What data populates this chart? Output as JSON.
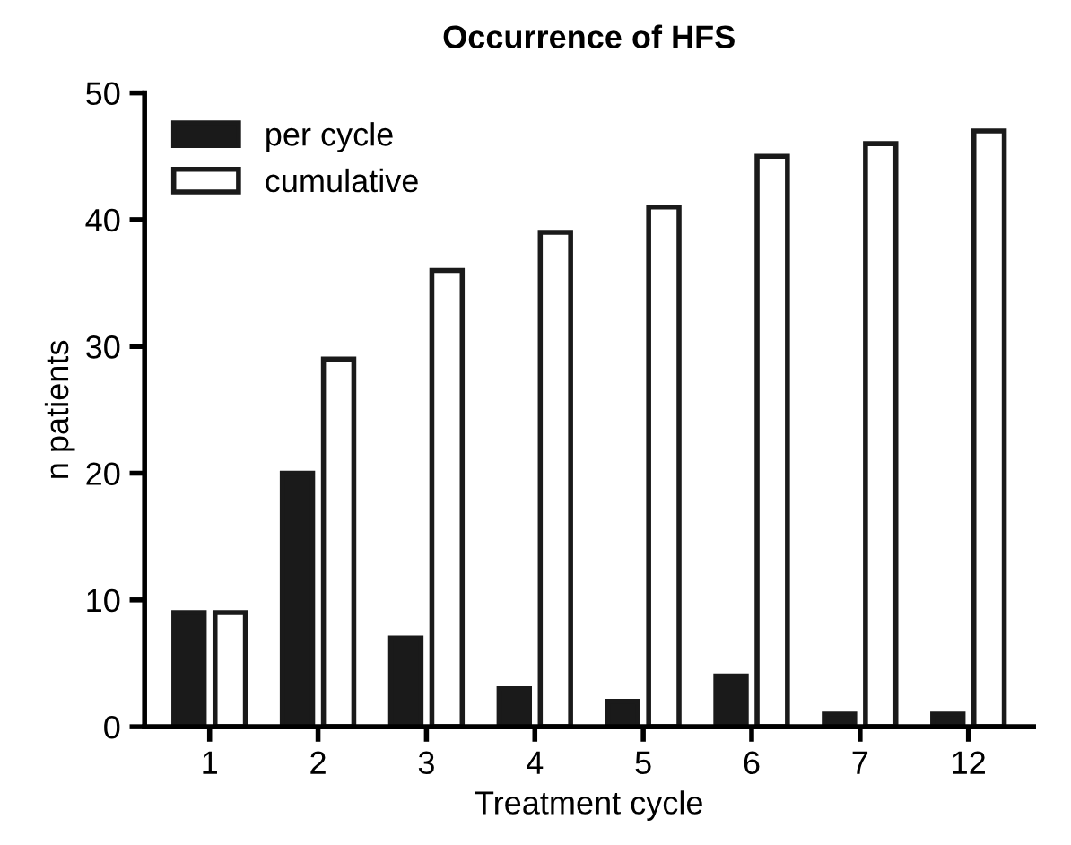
{
  "chart_data": {
    "type": "bar",
    "title": "Occurrence of HFS",
    "xlabel": "Treatment cycle",
    "ylabel": "n patients",
    "categories": [
      "1",
      "2",
      "3",
      "4",
      "5",
      "6",
      "7",
      "12"
    ],
    "series": [
      {
        "name": "per cycle",
        "color": "#1a1a1a",
        "values": [
          9,
          20,
          7,
          3,
          2,
          4,
          1,
          1
        ]
      },
      {
        "name": "cumulative",
        "color": "#ffffff",
        "values": [
          9,
          29,
          36,
          39,
          41,
          45,
          46,
          47
        ]
      }
    ],
    "ylim": [
      0,
      50
    ],
    "yticks": [
      0,
      10,
      20,
      30,
      40,
      50
    ],
    "grid": false,
    "legend": "top left"
  }
}
